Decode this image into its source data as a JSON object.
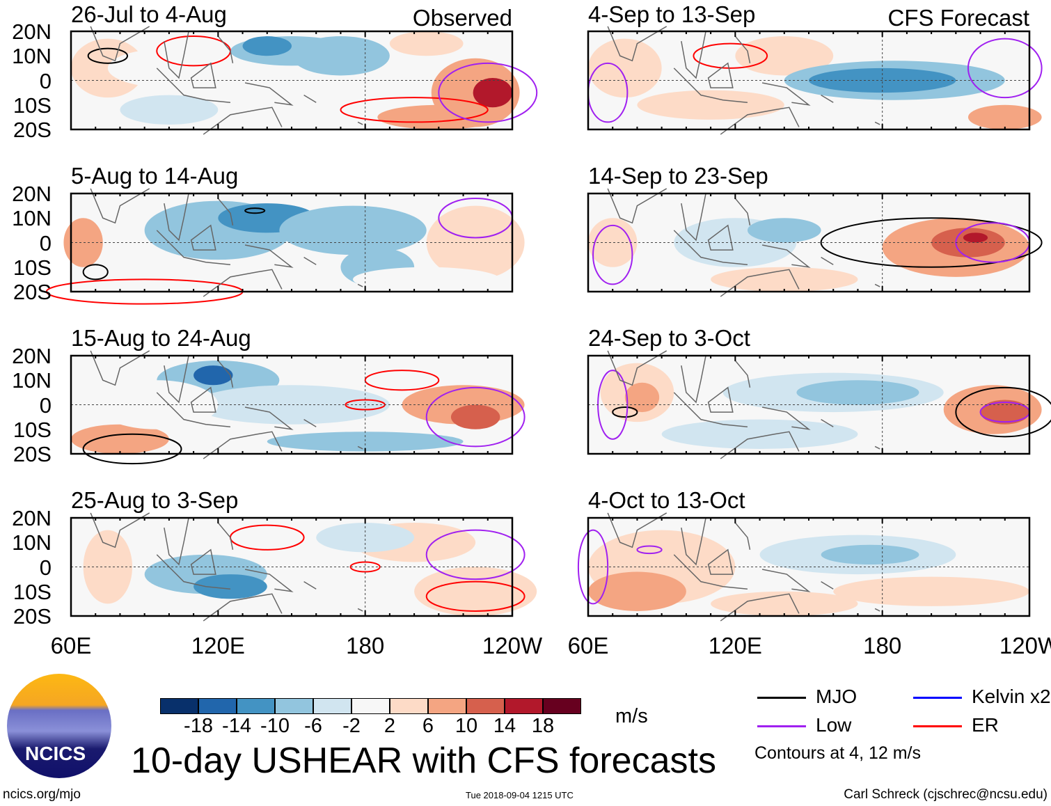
{
  "title": "10-day USHEAR with CFS forecasts",
  "site": "ncics.org/mjo",
  "timestamp": "Tue 2018-09-04 1215 UTC",
  "author": "Carl Schreck (cjschrec@ncsu.edu)",
  "logo_text": "NCICS",
  "columns": {
    "left": "Observed",
    "right": "CFS Forecast"
  },
  "colors": {
    "mjo": "#000000",
    "low": "#a020f0",
    "kelvin": "#0000ff",
    "er": "#ff0000"
  },
  "colorbar": {
    "units": "m/s",
    "ticks": [
      "-18",
      "-14",
      "-10",
      "-6",
      "-2",
      "2",
      "6",
      "10",
      "14",
      "18"
    ],
    "colors": [
      "#08306b",
      "#2166ac",
      "#4393c3",
      "#92c5de",
      "#d1e5f0",
      "#f7f7f7",
      "#fddbc7",
      "#f4a582",
      "#d6604d",
      "#b2182b",
      "#67001f"
    ]
  },
  "legend": {
    "items": [
      {
        "label": "MJO",
        "color": "#000000"
      },
      {
        "label": "Kelvin x2",
        "color": "#0000ff"
      },
      {
        "label": "Low",
        "color": "#a020f0"
      },
      {
        "label": "ER",
        "color": "#ff0000"
      }
    ],
    "note": "Contours at 4, 12 m/s"
  },
  "chart_data": {
    "type": "heatmap",
    "title": "10-day USHEAR with CFS forecasts",
    "units": "m/s",
    "x_ticks": [
      "60E",
      "120E",
      "180",
      "120W"
    ],
    "y_ticks": [
      "20N",
      "10N",
      "0",
      "10S",
      "20S"
    ],
    "xlim": [
      60,
      240
    ],
    "ylim": [
      -20,
      20
    ],
    "panels": [
      {
        "period": "26-Jul to 4-Aug",
        "source": "Observed"
      },
      {
        "period": "5-Aug to 14-Aug",
        "source": "Observed"
      },
      {
        "period": "15-Aug to 24-Aug",
        "source": "Observed"
      },
      {
        "period": "25-Aug to 3-Sep",
        "source": "Observed"
      },
      {
        "period": "4-Sep to 13-Sep",
        "source": "CFS Forecast"
      },
      {
        "period": "14-Sep to 23-Sep",
        "source": "CFS Forecast"
      },
      {
        "period": "24-Sep to 3-Oct",
        "source": "CFS Forecast"
      },
      {
        "period": "4-Oct to 13-Oct",
        "source": "CFS Forecast"
      }
    ]
  }
}
